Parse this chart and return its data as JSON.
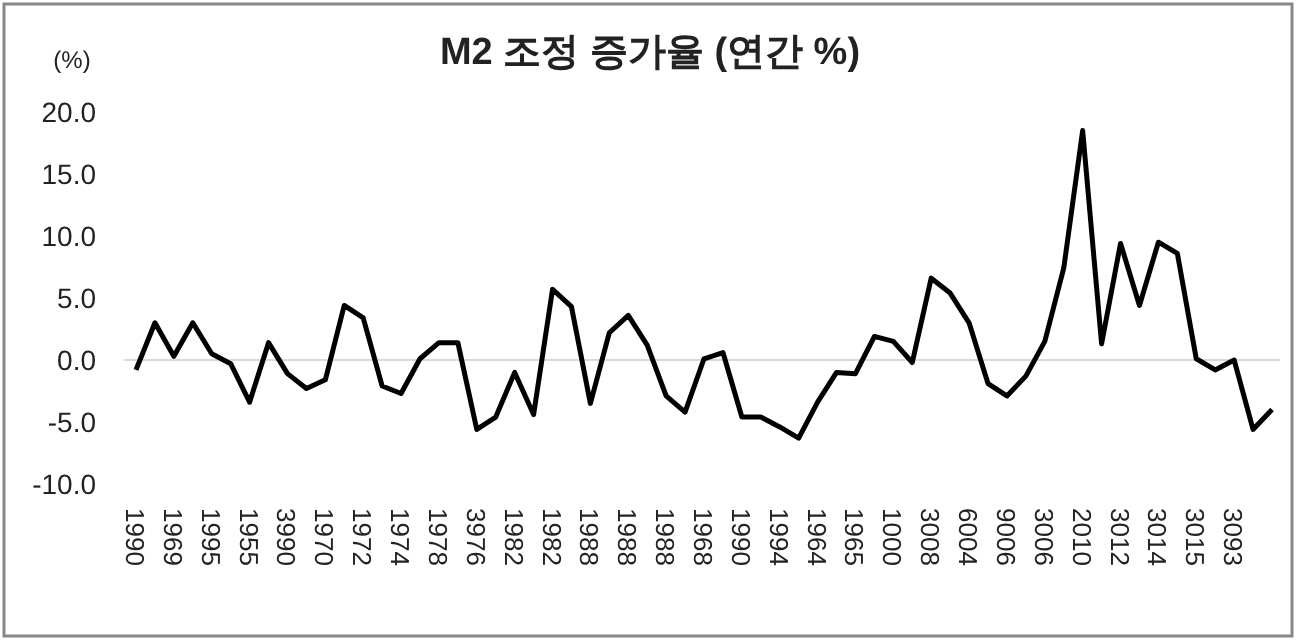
{
  "chart_data": {
    "type": "line",
    "title": "M2 조정 증가율 (연간 %)",
    "ylabel": "(%)",
    "categories": [
      "1990",
      null,
      "1969",
      null,
      "1995",
      null,
      "1955",
      null,
      "3990",
      null,
      "1970",
      null,
      "1972",
      null,
      "1974",
      null,
      "1978",
      null,
      "3976",
      null,
      "1982",
      null,
      "1982",
      null,
      "1988",
      null,
      "1988",
      null,
      "1988",
      null,
      "1968",
      null,
      "1990",
      null,
      "1994",
      null,
      "1964",
      null,
      "1965",
      null,
      "1000",
      null,
      "3008",
      null,
      "6004",
      null,
      "9006",
      null,
      "3006",
      null,
      "2010",
      null,
      "3012",
      null,
      "3014",
      null,
      "3015",
      null,
      "3093",
      null,
      null
    ],
    "series": [
      {
        "color": "#000000",
        "values": [
          -0.8,
          3.0,
          0.3,
          3.0,
          0.5,
          -0.3,
          -3.4,
          1.4,
          -1.1,
          -2.3,
          -1.6,
          4.4,
          3.4,
          -2.1,
          -2.7,
          0.1,
          1.4,
          1.4,
          -5.6,
          -4.6,
          -1.0,
          -4.4,
          5.7,
          4.3,
          -3.5,
          2.2,
          3.6,
          1.2,
          -2.9,
          -4.2,
          0.1,
          0.6,
          -4.6,
          -4.6,
          -5.4,
          -6.3,
          -3.4,
          -1.0,
          -1.1,
          1.9,
          1.5,
          -0.2,
          6.6,
          5.4,
          3.0,
          -1.9,
          -2.9,
          -1.3,
          1.5,
          7.4,
          18.5,
          1.3,
          9.4,
          4.4,
          9.5,
          8.6,
          0.1,
          -0.8,
          0.0,
          -5.6,
          -4.0
        ]
      }
    ],
    "ylim": [
      -10,
      20
    ],
    "yticks": [
      {
        "value": -10,
        "label": "-10.0"
      },
      {
        "value": -5,
        "label": "-5.0"
      },
      {
        "value": 0,
        "label": "0.0"
      },
      {
        "value": 5,
        "label": "5.0"
      },
      {
        "value": 10,
        "label": "10.0"
      },
      {
        "value": 15,
        "label": "15.0"
      },
      {
        "value": 20,
        "label": "20.0"
      }
    ],
    "ref_lines": [
      {
        "axis": "y",
        "value": 0,
        "color": "#d9d9d9"
      }
    ],
    "marker": "none",
    "line_style": "solid"
  }
}
